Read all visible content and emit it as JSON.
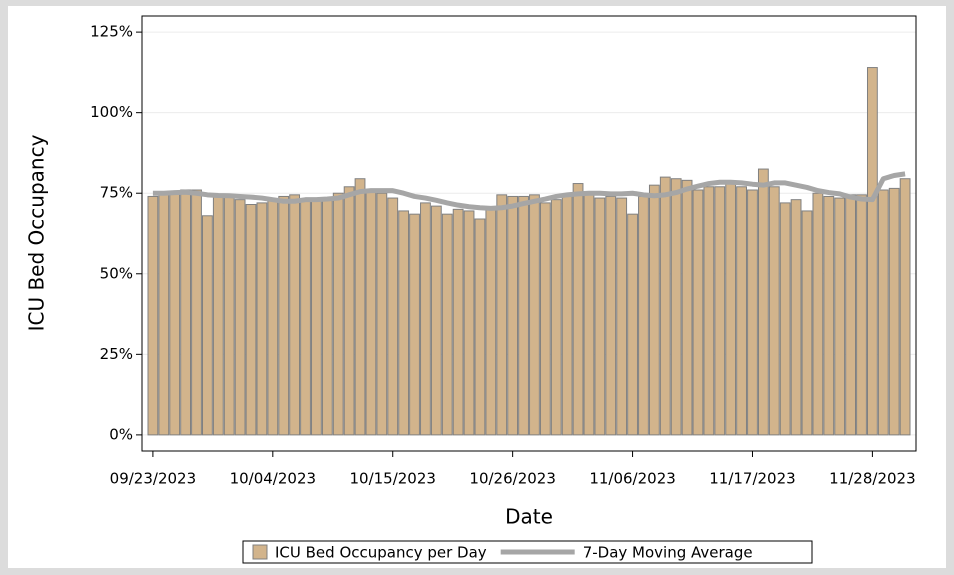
{
  "chart_data": {
    "type": "bar-line",
    "x_label": "Date",
    "y_label": "ICU Bed Occupancy",
    "x": [
      "09/23/2023",
      "09/24/2023",
      "09/25/2023",
      "09/26/2023",
      "09/27/2023",
      "09/28/2023",
      "09/29/2023",
      "09/30/2023",
      "10/01/2023",
      "10/02/2023",
      "10/03/2023",
      "10/04/2023",
      "10/05/2023",
      "10/06/2023",
      "10/07/2023",
      "10/08/2023",
      "10/09/2023",
      "10/10/2023",
      "10/11/2023",
      "10/12/2023",
      "10/13/2023",
      "10/14/2023",
      "10/15/2023",
      "10/16/2023",
      "10/17/2023",
      "10/18/2023",
      "10/19/2023",
      "10/20/2023",
      "10/21/2023",
      "10/22/2023",
      "10/23/2023",
      "10/24/2023",
      "10/25/2023",
      "10/26/2023",
      "10/27/2023",
      "10/28/2023",
      "10/29/2023",
      "10/30/2023",
      "10/31/2023",
      "11/01/2023",
      "11/02/2023",
      "11/03/2023",
      "11/04/2023",
      "11/05/2023",
      "11/06/2023",
      "11/07/2023",
      "11/08/2023",
      "11/09/2023",
      "11/10/2023",
      "11/11/2023",
      "11/12/2023",
      "11/13/2023",
      "11/14/2023",
      "11/15/2023",
      "11/16/2023",
      "11/17/2023",
      "11/18/2023",
      "11/19/2023",
      "11/20/2023",
      "11/21/2023",
      "11/22/2023",
      "11/23/2023",
      "11/24/2023",
      "11/25/2023",
      "11/26/2023",
      "11/27/2023",
      "11/28/2023",
      "11/29/2023",
      "11/30/2023",
      "12/01/2023"
    ],
    "series": [
      {
        "name": "ICU Bed Occupancy per Day",
        "kind": "bar",
        "color": "#d2b48c",
        "edge_color": "#808080",
        "values": [
          74,
          75,
          75,
          76,
          76,
          68,
          74,
          74,
          73,
          71.5,
          72,
          73,
          74,
          74.5,
          73,
          73,
          73,
          75,
          77,
          79.5,
          76,
          75,
          73.5,
          69.5,
          68.5,
          72,
          71,
          68.5,
          70,
          69.5,
          67,
          70,
          74.5,
          74,
          74,
          74.5,
          72,
          73,
          74,
          78,
          75,
          73.5,
          74,
          73.5,
          68.5,
          74,
          77.5,
          80,
          79.5,
          79,
          76,
          77,
          77,
          78,
          77,
          76,
          82.5,
          77,
          72,
          73,
          69.5,
          75,
          74,
          73.5,
          74.5,
          74.5,
          114,
          76,
          76.5,
          79.5
        ]
      },
      {
        "name": "7-Day Moving Average",
        "kind": "line",
        "color": "#a6a6a6",
        "values": [
          75,
          75,
          75.2,
          75.3,
          75,
          74.5,
          74.3,
          74.2,
          74,
          73.8,
          73.5,
          73,
          72.5,
          72.5,
          73,
          73,
          73.2,
          73.5,
          74.5,
          75.5,
          75.8,
          75.8,
          75.8,
          75,
          74,
          73.5,
          72.8,
          72,
          71.3,
          70.8,
          70.5,
          70.3,
          70.5,
          71,
          71.8,
          72.5,
          73.2,
          74,
          74.5,
          74.8,
          75,
          75,
          74.8,
          74.8,
          75,
          74.5,
          74.2,
          74.5,
          75.2,
          76.3,
          77.2,
          78,
          78.4,
          78.4,
          78.2,
          77.8,
          77.5,
          78.2,
          78.2,
          77.5,
          76.8,
          75.8,
          75.2,
          74.8,
          73.8,
          73.2,
          73,
          79.5,
          80.5,
          81
        ]
      }
    ],
    "xlim": [
      "09/22/2023",
      "12/02/2023"
    ],
    "xticks": [
      "09/23/2023",
      "10/04/2023",
      "10/15/2023",
      "10/26/2023",
      "11/06/2023",
      "11/17/2023",
      "11/28/2023"
    ],
    "ylim": [
      -5,
      130
    ],
    "yticks": [
      {
        "value": 0,
        "label": "0%"
      },
      {
        "value": 25,
        "label": "25%"
      },
      {
        "value": 50,
        "label": "50%"
      },
      {
        "value": 75,
        "label": "75%"
      },
      {
        "value": 100,
        "label": "100%"
      },
      {
        "value": 125,
        "label": "125%"
      }
    ],
    "grid": true,
    "legend": "bottom"
  }
}
